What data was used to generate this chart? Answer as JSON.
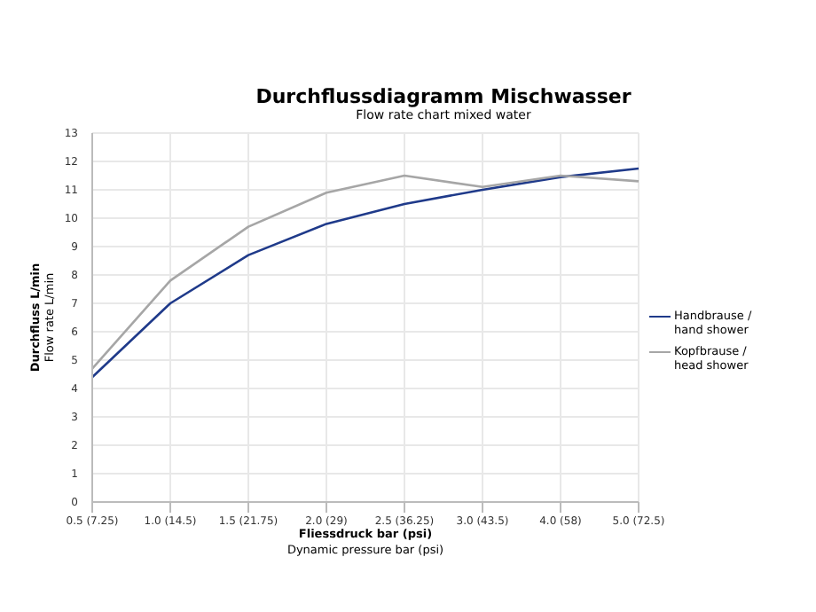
{
  "chart_data": {
    "type": "line",
    "title": "Durchflussdiagramm Mischwasser",
    "subtitle": "Flow rate chart mixed water",
    "xlabel": "Fliessdruck bar (psi)\nDynamic pressure bar (psi)",
    "ylabel": "Durchfluss L/min\nFlow rate L/min",
    "categories": [
      "0.5 (7.25)",
      "1.0 (14.5)",
      "1.5 (21.75)",
      "2.0 (29)",
      "2.5 (36.25)",
      "3.0 (43.5)",
      "4.0 (58)",
      "5.0 (72.5)"
    ],
    "series": [
      {
        "name": "Handbrause / hand shower",
        "color": "#1f3a8a",
        "values": [
          4.4,
          7.0,
          8.7,
          9.8,
          10.5,
          11.0,
          11.45,
          11.75
        ]
      },
      {
        "name": "Kopfbrause / head shower",
        "color": "#a6a6a6",
        "values": [
          4.7,
          7.8,
          9.7,
          10.9,
          11.5,
          11.1,
          11.5,
          11.3
        ]
      }
    ],
    "ylim": [
      0,
      13
    ],
    "yticks": [
      0,
      1,
      2,
      3,
      4,
      5,
      6,
      7,
      8,
      9,
      10,
      11,
      12,
      13
    ],
    "grid": true,
    "legend": "right",
    "marker": "none",
    "line_style": "solid"
  }
}
